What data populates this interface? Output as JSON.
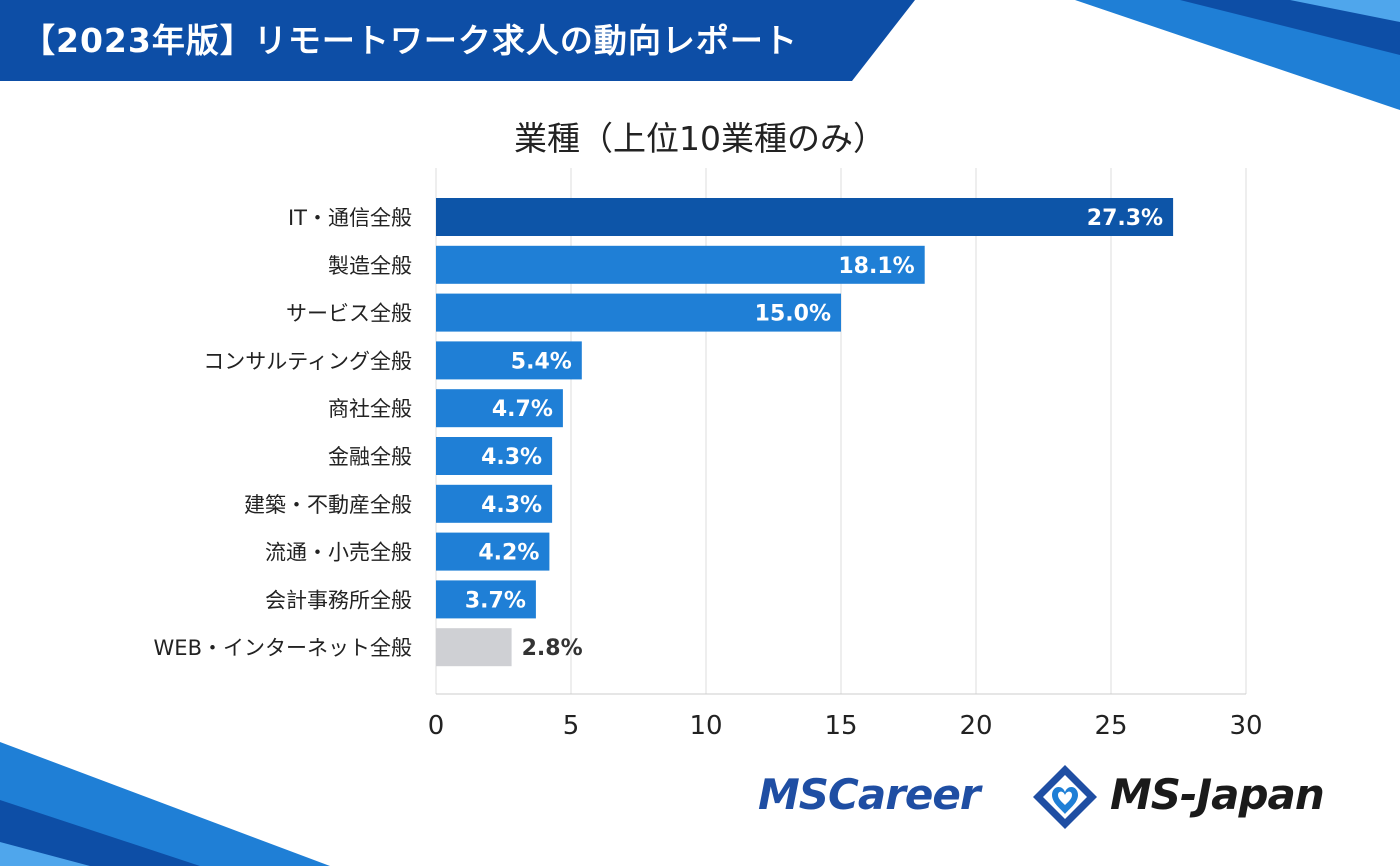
{
  "header": {
    "title": "【2023年版】リモートワーク求人の動向レポート"
  },
  "colors": {
    "header_blue": "#0d4ea6",
    "bar_primary": "#0d55a8",
    "bar_main": "#1f7fd6",
    "bar_other": "#cfd0d4",
    "grid": "#dddddd"
  },
  "chart_data": {
    "type": "bar",
    "orientation": "horizontal",
    "title": "業種（上位10業種のみ）",
    "categories": [
      "IT・通信全般",
      "製造全般",
      "サービス全般",
      "コンサルティング全般",
      "商社全般",
      "金融全般",
      "建築・不動産全般",
      "流通・小売全般",
      "会計事務所全般",
      "WEB・インターネット全般"
    ],
    "values": [
      27.3,
      18.1,
      15.0,
      5.4,
      4.7,
      4.3,
      4.3,
      4.2,
      3.7,
      2.8
    ],
    "value_labels": [
      "27.3%",
      "18.1%",
      "15.0%",
      "5.4%",
      "4.7%",
      "4.3%",
      "4.3%",
      "4.2%",
      "3.7%",
      "2.8%"
    ],
    "xlim": [
      0,
      30
    ],
    "xticks": [
      0,
      5,
      10,
      15,
      20,
      25,
      30
    ],
    "grid": true,
    "xlabel": "",
    "ylabel": ""
  },
  "footer": {
    "brand_left": "MSCareer",
    "brand_right": "MS-Japan"
  }
}
